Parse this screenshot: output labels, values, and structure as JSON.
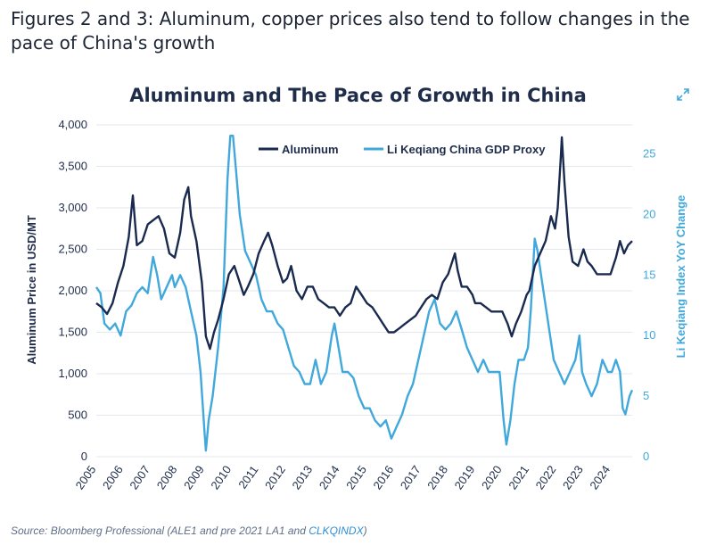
{
  "heading": "Figures 2 and 3: Aluminum, copper prices also tend to follow changes in the pace of China's growth",
  "source": {
    "prefix": "Source: Bloomberg Professional (ALE1 and pre 2021 LA1 and ",
    "link": "CLKQINDX",
    "suffix": ")"
  },
  "icons": {
    "expand": "expand-arrows-icon"
  },
  "colors": {
    "aluminum": "#1a2a4f",
    "gdp_proxy": "#41a8dc",
    "grid": "#e3e7ee"
  },
  "chart_data": {
    "type": "line",
    "title": "Aluminum and The Pace of Growth in China",
    "ylabel": "Aluminum Price in USD/MT",
    "y2label": "Li Keqiang Index YoY Change",
    "ylim": [
      0,
      4000
    ],
    "y2lim": [
      0,
      27.4
    ],
    "xlim": [
      2005,
      2024.8
    ],
    "y_ticks": [
      "0",
      "500",
      "1,000",
      "1,500",
      "2,000",
      "2,500",
      "3,000",
      "3,500",
      "4,000"
    ],
    "y2_ticks": [
      "0",
      "5",
      "10",
      "15",
      "20",
      "25"
    ],
    "x_ticks": [
      "2005",
      "2006",
      "2007",
      "2008",
      "2009",
      "2010",
      "2011",
      "2012",
      "2013",
      "2014",
      "2015",
      "2016",
      "2017",
      "2018",
      "2019",
      "2020",
      "2021",
      "2022",
      "2023",
      "2024"
    ],
    "grid": "horizontal",
    "legend_position": "top-center",
    "series": [
      {
        "name": "Aluminum",
        "axis": "left",
        "points": [
          [
            2005.0,
            1850
          ],
          [
            2005.2,
            1800
          ],
          [
            2005.4,
            1720
          ],
          [
            2005.6,
            1850
          ],
          [
            2005.8,
            2100
          ],
          [
            2006.0,
            2300
          ],
          [
            2006.2,
            2650
          ],
          [
            2006.35,
            3150
          ],
          [
            2006.5,
            2550
          ],
          [
            2006.7,
            2600
          ],
          [
            2006.9,
            2800
          ],
          [
            2007.1,
            2850
          ],
          [
            2007.3,
            2900
          ],
          [
            2007.5,
            2750
          ],
          [
            2007.7,
            2450
          ],
          [
            2007.9,
            2400
          ],
          [
            2008.1,
            2700
          ],
          [
            2008.25,
            3100
          ],
          [
            2008.4,
            3250
          ],
          [
            2008.5,
            2900
          ],
          [
            2008.7,
            2600
          ],
          [
            2008.9,
            2100
          ],
          [
            2009.05,
            1450
          ],
          [
            2009.2,
            1300
          ],
          [
            2009.35,
            1500
          ],
          [
            2009.5,
            1650
          ],
          [
            2009.7,
            1900
          ],
          [
            2009.9,
            2200
          ],
          [
            2010.1,
            2300
          ],
          [
            2010.3,
            2100
          ],
          [
            2010.45,
            1950
          ],
          [
            2010.6,
            2050
          ],
          [
            2010.8,
            2200
          ],
          [
            2011.0,
            2450
          ],
          [
            2011.2,
            2600
          ],
          [
            2011.35,
            2700
          ],
          [
            2011.5,
            2550
          ],
          [
            2011.7,
            2300
          ],
          [
            2011.9,
            2100
          ],
          [
            2012.05,
            2150
          ],
          [
            2012.2,
            2300
          ],
          [
            2012.4,
            2000
          ],
          [
            2012.6,
            1900
          ],
          [
            2012.8,
            2050
          ],
          [
            2013.0,
            2050
          ],
          [
            2013.2,
            1900
          ],
          [
            2013.4,
            1850
          ],
          [
            2013.6,
            1800
          ],
          [
            2013.8,
            1800
          ],
          [
            2014.0,
            1700
          ],
          [
            2014.2,
            1800
          ],
          [
            2014.4,
            1850
          ],
          [
            2014.6,
            2050
          ],
          [
            2014.8,
            1950
          ],
          [
            2015.0,
            1850
          ],
          [
            2015.2,
            1800
          ],
          [
            2015.4,
            1700
          ],
          [
            2015.6,
            1600
          ],
          [
            2015.8,
            1500
          ],
          [
            2016.0,
            1500
          ],
          [
            2016.2,
            1550
          ],
          [
            2016.4,
            1600
          ],
          [
            2016.6,
            1650
          ],
          [
            2016.8,
            1700
          ],
          [
            2017.0,
            1800
          ],
          [
            2017.2,
            1900
          ],
          [
            2017.4,
            1950
          ],
          [
            2017.6,
            1900
          ],
          [
            2017.8,
            2100
          ],
          [
            2018.0,
            2200
          ],
          [
            2018.25,
            2450
          ],
          [
            2018.35,
            2250
          ],
          [
            2018.5,
            2050
          ],
          [
            2018.7,
            2050
          ],
          [
            2018.9,
            1950
          ],
          [
            2019.0,
            1850
          ],
          [
            2019.2,
            1850
          ],
          [
            2019.4,
            1800
          ],
          [
            2019.6,
            1750
          ],
          [
            2019.8,
            1750
          ],
          [
            2020.0,
            1750
          ],
          [
            2020.2,
            1600
          ],
          [
            2020.35,
            1450
          ],
          [
            2020.5,
            1600
          ],
          [
            2020.7,
            1750
          ],
          [
            2020.9,
            1950
          ],
          [
            2021.0,
            2000
          ],
          [
            2021.2,
            2300
          ],
          [
            2021.4,
            2450
          ],
          [
            2021.6,
            2600
          ],
          [
            2021.8,
            2900
          ],
          [
            2021.95,
            2750
          ],
          [
            2022.05,
            3000
          ],
          [
            2022.15,
            3550
          ],
          [
            2022.2,
            3850
          ],
          [
            2022.3,
            3300
          ],
          [
            2022.45,
            2650
          ],
          [
            2022.6,
            2350
          ],
          [
            2022.8,
            2300
          ],
          [
            2023.0,
            2500
          ],
          [
            2023.15,
            2350
          ],
          [
            2023.3,
            2300
          ],
          [
            2023.5,
            2200
          ],
          [
            2023.7,
            2200
          ],
          [
            2023.9,
            2200
          ],
          [
            2024.0,
            2200
          ],
          [
            2024.2,
            2400
          ],
          [
            2024.35,
            2600
          ],
          [
            2024.5,
            2450
          ],
          [
            2024.65,
            2550
          ],
          [
            2024.8,
            2600
          ]
        ]
      },
      {
        "name": "Li Keqiang China GDP Proxy",
        "axis": "right",
        "points": [
          [
            2005.0,
            14
          ],
          [
            2005.15,
            13.5
          ],
          [
            2005.3,
            11
          ],
          [
            2005.5,
            10.5
          ],
          [
            2005.7,
            11
          ],
          [
            2005.9,
            10
          ],
          [
            2006.1,
            12
          ],
          [
            2006.3,
            12.5
          ],
          [
            2006.5,
            13.5
          ],
          [
            2006.7,
            14
          ],
          [
            2006.9,
            13.5
          ],
          [
            2007.1,
            16.5
          ],
          [
            2007.25,
            15
          ],
          [
            2007.4,
            13
          ],
          [
            2007.6,
            14
          ],
          [
            2007.8,
            15
          ],
          [
            2007.9,
            14
          ],
          [
            2008.1,
            15
          ],
          [
            2008.3,
            14
          ],
          [
            2008.5,
            12
          ],
          [
            2008.7,
            10
          ],
          [
            2008.85,
            7
          ],
          [
            2009.0,
            2
          ],
          [
            2009.05,
            0.5
          ],
          [
            2009.15,
            3
          ],
          [
            2009.3,
            5
          ],
          [
            2009.5,
            9
          ],
          [
            2009.7,
            14
          ],
          [
            2009.85,
            23
          ],
          [
            2009.95,
            26.5
          ],
          [
            2010.05,
            26.5
          ],
          [
            2010.15,
            24
          ],
          [
            2010.3,
            20
          ],
          [
            2010.5,
            17
          ],
          [
            2010.7,
            16
          ],
          [
            2010.9,
            15
          ],
          [
            2011.1,
            13
          ],
          [
            2011.3,
            12
          ],
          [
            2011.5,
            12
          ],
          [
            2011.7,
            11
          ],
          [
            2011.9,
            10.5
          ],
          [
            2012.1,
            9
          ],
          [
            2012.3,
            7.5
          ],
          [
            2012.5,
            7
          ],
          [
            2012.7,
            6
          ],
          [
            2012.9,
            6
          ],
          [
            2013.1,
            8
          ],
          [
            2013.3,
            6
          ],
          [
            2013.5,
            7
          ],
          [
            2013.7,
            10
          ],
          [
            2013.8,
            11
          ],
          [
            2013.95,
            9
          ],
          [
            2014.1,
            7
          ],
          [
            2014.3,
            7
          ],
          [
            2014.5,
            6.5
          ],
          [
            2014.7,
            5
          ],
          [
            2014.9,
            4
          ],
          [
            2015.1,
            4
          ],
          [
            2015.3,
            3
          ],
          [
            2015.5,
            2.5
          ],
          [
            2015.7,
            3
          ],
          [
            2015.9,
            1.5
          ],
          [
            2016.1,
            2.5
          ],
          [
            2016.3,
            3.5
          ],
          [
            2016.5,
            5
          ],
          [
            2016.7,
            6
          ],
          [
            2016.9,
            8
          ],
          [
            2017.1,
            10
          ],
          [
            2017.3,
            12
          ],
          [
            2017.5,
            13
          ],
          [
            2017.7,
            11
          ],
          [
            2017.9,
            10.5
          ],
          [
            2018.1,
            11
          ],
          [
            2018.3,
            12
          ],
          [
            2018.5,
            10.5
          ],
          [
            2018.7,
            9
          ],
          [
            2018.9,
            8
          ],
          [
            2019.1,
            7
          ],
          [
            2019.3,
            8
          ],
          [
            2019.5,
            7
          ],
          [
            2019.7,
            7
          ],
          [
            2019.9,
            7
          ],
          [
            2020.05,
            3
          ],
          [
            2020.15,
            1
          ],
          [
            2020.3,
            3
          ],
          [
            2020.45,
            6
          ],
          [
            2020.6,
            8
          ],
          [
            2020.8,
            8
          ],
          [
            2020.95,
            9
          ],
          [
            2021.05,
            12
          ],
          [
            2021.15,
            16
          ],
          [
            2021.2,
            18
          ],
          [
            2021.3,
            17
          ],
          [
            2021.5,
            14
          ],
          [
            2021.7,
            11
          ],
          [
            2021.9,
            8
          ],
          [
            2022.1,
            7
          ],
          [
            2022.3,
            6
          ],
          [
            2022.5,
            7
          ],
          [
            2022.7,
            8
          ],
          [
            2022.85,
            10
          ],
          [
            2022.95,
            7
          ],
          [
            2023.1,
            6
          ],
          [
            2023.3,
            5
          ],
          [
            2023.5,
            6
          ],
          [
            2023.7,
            8
          ],
          [
            2023.9,
            7
          ],
          [
            2024.05,
            7
          ],
          [
            2024.2,
            8
          ],
          [
            2024.35,
            7
          ],
          [
            2024.45,
            4
          ],
          [
            2024.55,
            3.5
          ],
          [
            2024.7,
            5
          ],
          [
            2024.8,
            5.5
          ]
        ]
      }
    ]
  }
}
